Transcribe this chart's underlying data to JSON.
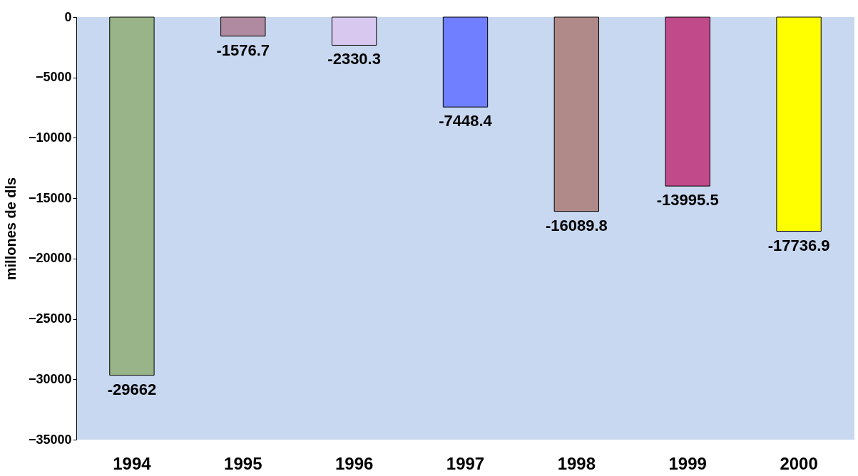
{
  "chart_data": {
    "type": "bar",
    "ylabel": "millones de dls",
    "categories": [
      "1994",
      "1995",
      "1996",
      "1997",
      "1998",
      "1999",
      "2000"
    ],
    "values": [
      -29662,
      -1576.7,
      -2330.3,
      -7448.4,
      -16089.8,
      -13995.5,
      -17736.9
    ],
    "colors": [
      "#99b488",
      "#b08aa0",
      "#d8c8f0",
      "#6f7fff",
      "#b08a88",
      "#c04a8a",
      "#ffff00"
    ],
    "ylim": [
      -35000,
      0
    ],
    "yticks": [
      0,
      -5000,
      -10000,
      -15000,
      -20000,
      -25000,
      -30000,
      -35000
    ],
    "data_labels": true,
    "grid": false
  }
}
